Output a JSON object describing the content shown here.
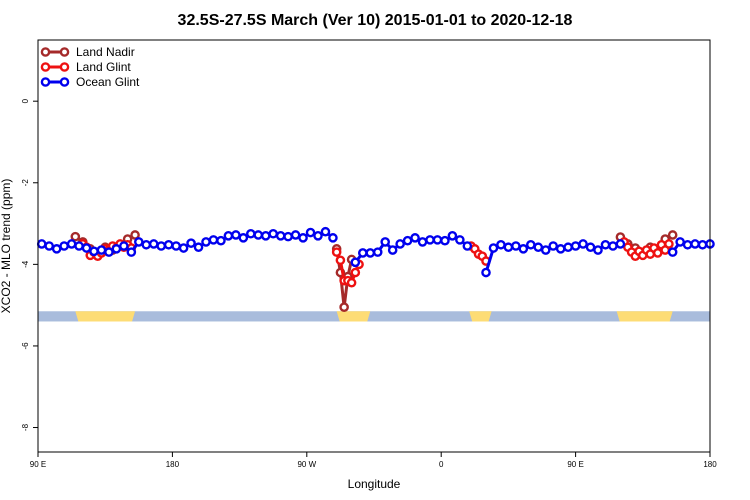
{
  "chart_data": {
    "type": "line",
    "title": "32.5S-27.5S March (Ver 10)   2015-01-01 to 2020-12-18",
    "xlabel": "Longitude",
    "ylabel": "XCO2 - MLO trend (ppm)",
    "xlim": [
      0,
      360
    ],
    "ylim": [
      -8.6,
      1.5
    ],
    "x_ticks": [
      {
        "value": 0,
        "label": "90 E"
      },
      {
        "value": 72,
        "label": "180"
      },
      {
        "value": 144,
        "label": "90 W"
      },
      {
        "value": 216,
        "label": "0"
      },
      {
        "value": 288,
        "label": "90 E"
      },
      {
        "value": 360,
        "label": "180"
      }
    ],
    "y_ticks": [
      {
        "value": 0,
        "label": "0"
      },
      {
        "value": -2,
        "label": "-2"
      },
      {
        "value": -4,
        "label": "-4"
      },
      {
        "value": -6,
        "label": "-6"
      },
      {
        "value": -8,
        "label": "-8"
      }
    ],
    "legend_position": "top-left",
    "land_band": {
      "y_range": [
        -5.4,
        -5.15
      ],
      "ocean_color": "#a9bcdc",
      "land_color": "#fddc75",
      "land_segments": [
        [
          20,
          52
        ],
        [
          160,
          178
        ],
        [
          231,
          243
        ],
        [
          310,
          340
        ]
      ]
    },
    "series": [
      {
        "name": "Land Nadir",
        "color": "#a52a2a",
        "x": [
          20,
          24,
          28,
          32,
          36,
          40,
          44,
          48,
          52,
          160,
          162,
          164,
          166,
          168,
          312,
          316,
          320,
          324,
          328,
          332,
          336,
          340
        ],
        "y": [
          -3.32,
          -3.45,
          -3.62,
          -3.7,
          -3.58,
          -3.65,
          -3.55,
          -3.38,
          -3.28,
          -3.62,
          -4.2,
          -5.05,
          -4.3,
          -3.88,
          -3.33,
          -3.5,
          -3.6,
          -3.75,
          -3.58,
          -3.65,
          -3.38,
          -3.28
        ]
      },
      {
        "name": "Land Glint",
        "color": "#ee1111",
        "x": [
          24,
          26,
          28,
          30,
          32,
          34,
          36,
          38,
          40,
          42,
          44,
          46,
          48,
          50,
          160,
          162,
          164,
          166,
          168,
          170,
          172,
          232,
          234,
          236,
          238,
          240,
          314,
          316,
          318,
          320,
          322,
          324,
          326,
          328,
          330,
          332,
          334,
          336,
          338
        ],
        "y": [
          -3.5,
          -3.58,
          -3.78,
          -3.7,
          -3.8,
          -3.72,
          -3.62,
          -3.65,
          -3.55,
          -3.6,
          -3.5,
          -3.58,
          -3.52,
          -3.6,
          -3.7,
          -3.9,
          -4.4,
          -4.4,
          -4.45,
          -4.2,
          -4.0,
          -3.55,
          -3.62,
          -3.75,
          -3.8,
          -3.92,
          -3.45,
          -3.58,
          -3.7,
          -3.8,
          -3.68,
          -3.78,
          -3.65,
          -3.75,
          -3.6,
          -3.72,
          -3.52,
          -3.65,
          -3.5
        ]
      },
      {
        "name": "Ocean Glint",
        "color": "#0000ee",
        "x": [
          2,
          6,
          10,
          14,
          18,
          22,
          26,
          30,
          34,
          38,
          42,
          46,
          50,
          54,
          58,
          62,
          66,
          70,
          74,
          78,
          82,
          86,
          90,
          94,
          98,
          102,
          106,
          110,
          114,
          118,
          122,
          126,
          130,
          134,
          138,
          142,
          146,
          150,
          154,
          158,
          170,
          174,
          178,
          182,
          186,
          190,
          194,
          198,
          202,
          206,
          210,
          214,
          218,
          222,
          226,
          230,
          240,
          244,
          248,
          252,
          256,
          260,
          264,
          268,
          272,
          276,
          280,
          284,
          288,
          292,
          296,
          300,
          304,
          308,
          312,
          340,
          344,
          348,
          352,
          356,
          360
        ],
        "y": [
          -3.5,
          -3.55,
          -3.62,
          -3.55,
          -3.5,
          -3.55,
          -3.6,
          -3.68,
          -3.65,
          -3.7,
          -3.62,
          -3.55,
          -3.7,
          -3.45,
          -3.52,
          -3.5,
          -3.55,
          -3.52,
          -3.55,
          -3.6,
          -3.48,
          -3.58,
          -3.45,
          -3.4,
          -3.42,
          -3.3,
          -3.28,
          -3.35,
          -3.25,
          -3.28,
          -3.3,
          -3.25,
          -3.3,
          -3.32,
          -3.28,
          -3.35,
          -3.22,
          -3.3,
          -3.2,
          -3.35,
          -3.95,
          -3.72,
          -3.72,
          -3.7,
          -3.45,
          -3.65,
          -3.5,
          -3.42,
          -3.35,
          -3.45,
          -3.4,
          -3.4,
          -3.42,
          -3.3,
          -3.4,
          -3.55,
          -4.2,
          -3.6,
          -3.52,
          -3.58,
          -3.55,
          -3.62,
          -3.52,
          -3.58,
          -3.65,
          -3.55,
          -3.62,
          -3.58,
          -3.55,
          -3.5,
          -3.58,
          -3.65,
          -3.52,
          -3.55,
          -3.5,
          -3.7,
          -3.45,
          -3.52,
          -3.5,
          -3.52,
          -3.5
        ]
      }
    ]
  }
}
